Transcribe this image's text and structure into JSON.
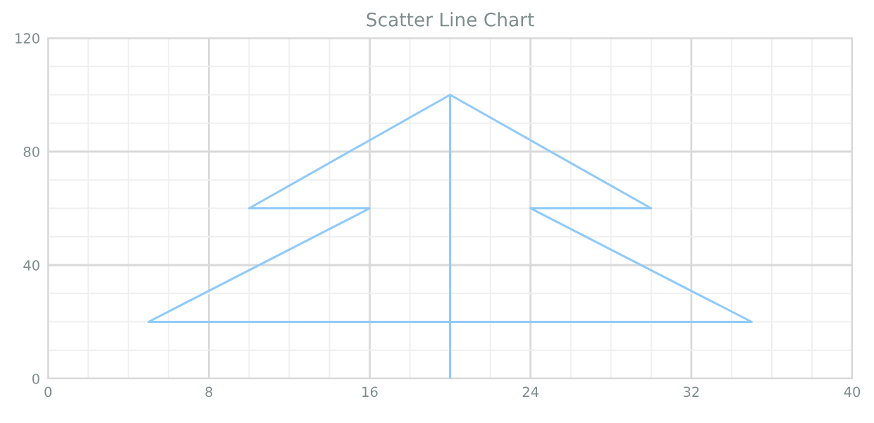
{
  "chart_data": {
    "type": "line",
    "title": "Scatter Line Chart",
    "x": [
      20,
      20,
      10,
      16,
      5,
      35,
      24,
      30,
      20
    ],
    "values": [
      0,
      100,
      60,
      60,
      20,
      20,
      60,
      60,
      100
    ],
    "color": "#90caf9",
    "xlim": [
      0,
      40
    ],
    "xticks": [
      0,
      {
        "value": 2,
        "label": null
      },
      {
        "value": 4,
        "label": null
      },
      {
        "value": 6,
        "label": null
      },
      8,
      {
        "value": 10,
        "label": null
      },
      {
        "value": 12,
        "label": null
      },
      {
        "value": 14,
        "label": null
      },
      16,
      {
        "value": 18,
        "label": null
      },
      {
        "value": 20,
        "label": null
      },
      {
        "value": 22,
        "label": null
      },
      24,
      {
        "value": 26,
        "label": null
      },
      {
        "value": 28,
        "label": null
      },
      {
        "value": 30,
        "label": null
      },
      32,
      {
        "value": 34,
        "label": null
      },
      {
        "value": 36,
        "label": null
      },
      {
        "value": 38,
        "label": null
      },
      40
    ],
    "ylim": [
      0,
      120
    ],
    "yticks": [
      0,
      {
        "value": 10,
        "label": null
      },
      {
        "value": 20,
        "label": null
      },
      {
        "value": 30,
        "label": null
      },
      40,
      {
        "value": 50,
        "label": null
      },
      {
        "value": 60,
        "label": null
      },
      {
        "value": 70,
        "label": null
      },
      80,
      {
        "value": 90,
        "label": null
      },
      {
        "value": 100,
        "label": null
      },
      {
        "value": 110,
        "label": null
      },
      120
    ],
    "grid": true,
    "marker": "none",
    "line_style": "solid"
  }
}
